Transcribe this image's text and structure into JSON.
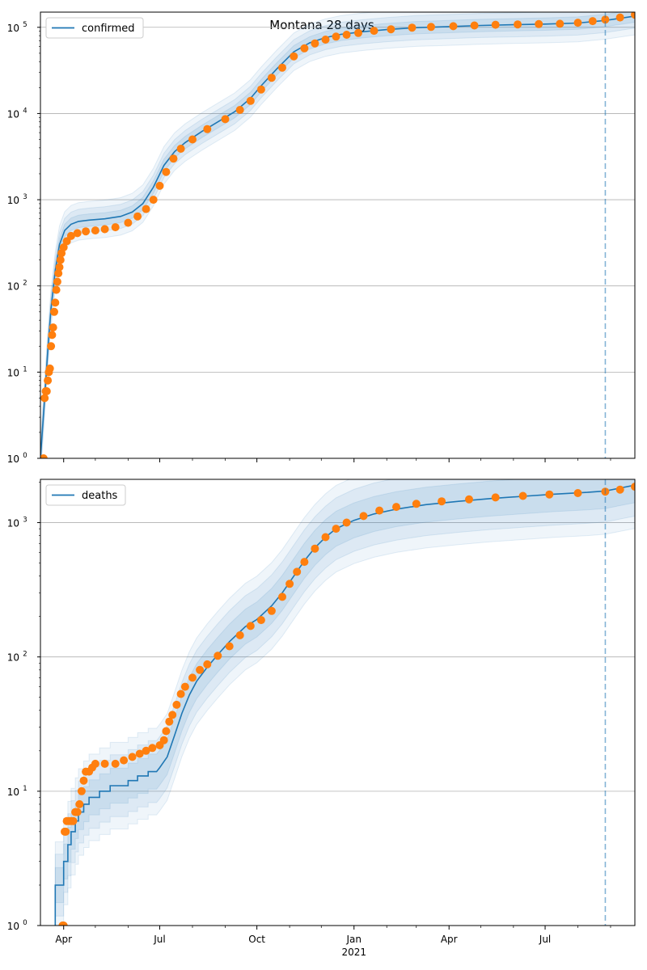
{
  "figure": {
    "title": "Montana 28 days"
  },
  "chart_data": [
    {
      "type": "line",
      "title": "Montana 28 days",
      "legend": [
        "confirmed"
      ],
      "legend_position": "top-left",
      "yscale": "log",
      "ylim": [
        1,
        150000
      ],
      "yticks": [
        1,
        10,
        100,
        1000,
        10000,
        100000
      ],
      "ytick_labels": [
        [
          "10",
          "0"
        ],
        [
          "10",
          "1"
        ],
        [
          "10",
          "2"
        ],
        [
          "10",
          "3"
        ],
        [
          "10",
          "4"
        ],
        [
          "10",
          "5"
        ]
      ],
      "xlim": [
        "2020-03-10",
        "2021-09-24"
      ],
      "grid": "y",
      "vline": "2021-08-27",
      "colors": {
        "model": "#1f77b4",
        "observed": "#ff7f0e",
        "band": "#1f77b4"
      },
      "series": [
        {
          "name": "confirmed",
          "kind": "model-line",
          "points": [
            [
              "2020-03-10",
              1
            ],
            [
              "2020-03-14",
              5
            ],
            [
              "2020-03-17",
              18
            ],
            [
              "2020-03-20",
              55
            ],
            [
              "2020-03-24",
              150
            ],
            [
              "2020-03-28",
              300
            ],
            [
              "2020-04-02",
              440
            ],
            [
              "2020-04-08",
              520
            ],
            [
              "2020-04-15",
              560
            ],
            [
              "2020-04-25",
              580
            ],
            [
              "2020-05-10",
              600
            ],
            [
              "2020-05-25",
              640
            ],
            [
              "2020-06-05",
              720
            ],
            [
              "2020-06-15",
              900
            ],
            [
              "2020-06-25",
              1400
            ],
            [
              "2020-07-05",
              2500
            ],
            [
              "2020-07-15",
              3600
            ],
            [
              "2020-07-25",
              4600
            ],
            [
              "2020-08-10",
              6200
            ],
            [
              "2020-08-25",
              8000
            ],
            [
              "2020-09-10",
              10500
            ],
            [
              "2020-09-25",
              15000
            ],
            [
              "2020-10-05",
              21000
            ],
            [
              "2020-10-20",
              33000
            ],
            [
              "2020-11-05",
              52000
            ],
            [
              "2020-11-20",
              66000
            ],
            [
              "2020-12-05",
              76000
            ],
            [
              "2020-12-20",
              83000
            ],
            [
              "2021-01-10",
              89000
            ],
            [
              "2021-02-01",
              94000
            ],
            [
              "2021-03-01",
              99000
            ],
            [
              "2021-04-01",
              102000
            ],
            [
              "2021-05-01",
              105000
            ],
            [
              "2021-06-01",
              107000
            ],
            [
              "2021-07-01",
              109000
            ],
            [
              "2021-08-01",
              112000
            ],
            [
              "2021-08-27",
              120000
            ],
            [
              "2021-09-24",
              135000
            ]
          ]
        },
        {
          "name": "observed",
          "kind": "markers",
          "points": [
            [
              "2020-03-13",
              1
            ],
            [
              "2020-03-14",
              5
            ],
            [
              "2020-03-15",
              6
            ],
            [
              "2020-03-16",
              6
            ],
            [
              "2020-03-17",
              8
            ],
            [
              "2020-03-18",
              10
            ],
            [
              "2020-03-19",
              11
            ],
            [
              "2020-03-20",
              20
            ],
            [
              "2020-03-21",
              27
            ],
            [
              "2020-03-22",
              33
            ],
            [
              "2020-03-23",
              50
            ],
            [
              "2020-03-24",
              64
            ],
            [
              "2020-03-25",
              90
            ],
            [
              "2020-03-26",
              112
            ],
            [
              "2020-03-27",
              140
            ],
            [
              "2020-03-28",
              165
            ],
            [
              "2020-03-29",
              200
            ],
            [
              "2020-03-30",
              240
            ],
            [
              "2020-04-01",
              280
            ],
            [
              "2020-04-04",
              330
            ],
            [
              "2020-04-08",
              380
            ],
            [
              "2020-04-14",
              410
            ],
            [
              "2020-04-22",
              430
            ],
            [
              "2020-05-01",
              440
            ],
            [
              "2020-05-10",
              455
            ],
            [
              "2020-05-20",
              480
            ],
            [
              "2020-06-01",
              540
            ],
            [
              "2020-06-10",
              640
            ],
            [
              "2020-06-18",
              780
            ],
            [
              "2020-06-25",
              1000
            ],
            [
              "2020-07-01",
              1450
            ],
            [
              "2020-07-07",
              2100
            ],
            [
              "2020-07-14",
              3000
            ],
            [
              "2020-07-21",
              3900
            ],
            [
              "2020-08-01",
              5000
            ],
            [
              "2020-08-15",
              6600
            ],
            [
              "2020-09-01",
              8600
            ],
            [
              "2020-09-15",
              11000
            ],
            [
              "2020-09-25",
              14000
            ],
            [
              "2020-10-05",
              19000
            ],
            [
              "2020-10-15",
              26000
            ],
            [
              "2020-10-25",
              34000
            ],
            [
              "2020-11-05",
              46000
            ],
            [
              "2020-11-15",
              57000
            ],
            [
              "2020-11-25",
              65000
            ],
            [
              "2020-12-05",
              72000
            ],
            [
              "2020-12-15",
              78000
            ],
            [
              "2020-12-25",
              82000
            ],
            [
              "2021-01-05",
              86000
            ],
            [
              "2021-01-20",
              91000
            ],
            [
              "2021-02-05",
              95000
            ],
            [
              "2021-02-25",
              99000
            ],
            [
              "2021-03-15",
              101000
            ],
            [
              "2021-04-05",
              103000
            ],
            [
              "2021-04-25",
              105000
            ],
            [
              "2021-05-15",
              107000
            ],
            [
              "2021-06-05",
              108000
            ],
            [
              "2021-06-25",
              109000
            ],
            [
              "2021-07-15",
              110000
            ],
            [
              "2021-08-01",
              113000
            ],
            [
              "2021-08-15",
              118000
            ],
            [
              "2021-08-27",
              123000
            ],
            [
              "2021-09-10",
              130000
            ],
            [
              "2021-09-24",
              140000
            ]
          ]
        }
      ]
    },
    {
      "type": "line",
      "legend": [
        "deaths"
      ],
      "legend_position": "top-left",
      "yscale": "log",
      "ylim": [
        1,
        2100
      ],
      "yticks": [
        1,
        10,
        100,
        1000
      ],
      "ytick_labels": [
        [
          "10",
          "0"
        ],
        [
          "10",
          "1"
        ],
        [
          "10",
          "2"
        ],
        [
          "10",
          "3"
        ]
      ],
      "xlim": [
        "2020-03-10",
        "2021-09-24"
      ],
      "xticks": [
        "2020-04-01",
        "2020-07-01",
        "2020-10-01",
        "2021-01-01",
        "2021-04-01",
        "2021-07-01"
      ],
      "xtick_labels": [
        "Apr",
        "Jul",
        "Oct",
        "Jan",
        "Apr",
        "Jul"
      ],
      "xlabel_year": "2021",
      "grid": "y",
      "vline": "2021-08-27",
      "series": [
        {
          "name": "deaths",
          "kind": "model-line",
          "points": [
            [
              "2020-03-24",
              1
            ],
            [
              "2020-03-24",
              2
            ],
            [
              "2020-04-01",
              2
            ],
            [
              "2020-04-01",
              3
            ],
            [
              "2020-04-05",
              3
            ],
            [
              "2020-04-05",
              4
            ],
            [
              "2020-04-08",
              4
            ],
            [
              "2020-04-08",
              5
            ],
            [
              "2020-04-12",
              5
            ],
            [
              "2020-04-12",
              6
            ],
            [
              "2020-04-15",
              6
            ],
            [
              "2020-04-15",
              7
            ],
            [
              "2020-04-20",
              7
            ],
            [
              "2020-04-20",
              8
            ],
            [
              "2020-04-25",
              8
            ],
            [
              "2020-04-25",
              9
            ],
            [
              "2020-05-05",
              9
            ],
            [
              "2020-05-05",
              10
            ],
            [
              "2020-05-15",
              10
            ],
            [
              "2020-05-15",
              11
            ],
            [
              "2020-06-01",
              11
            ],
            [
              "2020-06-01",
              12
            ],
            [
              "2020-06-10",
              12
            ],
            [
              "2020-06-10",
              13
            ],
            [
              "2020-06-20",
              13
            ],
            [
              "2020-06-20",
              14
            ],
            [
              "2020-06-28",
              14
            ],
            [
              "2020-07-01",
              15
            ],
            [
              "2020-07-08",
              18
            ],
            [
              "2020-07-15",
              26
            ],
            [
              "2020-07-22",
              38
            ],
            [
              "2020-07-29",
              52
            ],
            [
              "2020-08-05",
              66
            ],
            [
              "2020-08-15",
              84
            ],
            [
              "2020-08-25",
              104
            ],
            [
              "2020-09-05",
              130
            ],
            [
              "2020-09-20",
              168
            ],
            [
              "2020-10-01",
              190
            ],
            [
              "2020-10-15",
              240
            ],
            [
              "2020-10-25",
              300
            ],
            [
              "2020-11-05",
              400
            ],
            [
              "2020-11-15",
              520
            ],
            [
              "2020-11-25",
              650
            ],
            [
              "2020-12-05",
              780
            ],
            [
              "2020-12-15",
              900
            ],
            [
              "2021-01-01",
              1040
            ],
            [
              "2021-01-20",
              1160
            ],
            [
              "2021-02-10",
              1260
            ],
            [
              "2021-03-10",
              1360
            ],
            [
              "2021-04-10",
              1440
            ],
            [
              "2021-05-10",
              1510
            ],
            [
              "2021-06-10",
              1570
            ],
            [
              "2021-07-10",
              1630
            ],
            [
              "2021-08-10",
              1680
            ],
            [
              "2021-08-27",
              1720
            ],
            [
              "2021-09-24",
              1900
            ]
          ]
        },
        {
          "name": "observed",
          "kind": "markers",
          "points": [
            [
              "2020-03-31",
              1
            ],
            [
              "2020-04-01",
              1
            ],
            [
              "2020-04-02",
              5
            ],
            [
              "2020-04-03",
              5
            ],
            [
              "2020-04-04",
              6
            ],
            [
              "2020-04-06",
              6
            ],
            [
              "2020-04-08",
              6
            ],
            [
              "2020-04-10",
              6
            ],
            [
              "2020-04-12",
              7
            ],
            [
              "2020-04-14",
              7
            ],
            [
              "2020-04-16",
              8
            ],
            [
              "2020-04-18",
              10
            ],
            [
              "2020-04-20",
              12
            ],
            [
              "2020-04-22",
              14
            ],
            [
              "2020-04-25",
              14
            ],
            [
              "2020-04-28",
              15
            ],
            [
              "2020-05-01",
              16
            ],
            [
              "2020-05-10",
              16
            ],
            [
              "2020-05-20",
              16
            ],
            [
              "2020-05-28",
              17
            ],
            [
              "2020-06-05",
              18
            ],
            [
              "2020-06-12",
              19
            ],
            [
              "2020-06-18",
              20
            ],
            [
              "2020-06-24",
              21
            ],
            [
              "2020-07-01",
              22
            ],
            [
              "2020-07-05",
              24
            ],
            [
              "2020-07-07",
              28
            ],
            [
              "2020-07-10",
              33
            ],
            [
              "2020-07-13",
              37
            ],
            [
              "2020-07-17",
              44
            ],
            [
              "2020-07-21",
              53
            ],
            [
              "2020-07-25",
              60
            ],
            [
              "2020-08-01",
              70
            ],
            [
              "2020-08-08",
              80
            ],
            [
              "2020-08-15",
              88
            ],
            [
              "2020-08-25",
              102
            ],
            [
              "2020-09-05",
              120
            ],
            [
              "2020-09-15",
              145
            ],
            [
              "2020-09-25",
              170
            ],
            [
              "2020-10-05",
              188
            ],
            [
              "2020-10-15",
              220
            ],
            [
              "2020-10-25",
              280
            ],
            [
              "2020-11-01",
              350
            ],
            [
              "2020-11-08",
              430
            ],
            [
              "2020-11-15",
              510
            ],
            [
              "2020-11-25",
              640
            ],
            [
              "2020-12-05",
              780
            ],
            [
              "2020-12-15",
              900
            ],
            [
              "2020-12-25",
              1000
            ],
            [
              "2021-01-10",
              1120
            ],
            [
              "2021-01-25",
              1230
            ],
            [
              "2021-02-10",
              1310
            ],
            [
              "2021-03-01",
              1380
            ],
            [
              "2021-03-25",
              1440
            ],
            [
              "2021-04-20",
              1490
            ],
            [
              "2021-05-15",
              1540
            ],
            [
              "2021-06-10",
              1580
            ],
            [
              "2021-07-05",
              1620
            ],
            [
              "2021-08-01",
              1660
            ],
            [
              "2021-08-27",
              1700
            ],
            [
              "2021-09-10",
              1760
            ],
            [
              "2021-09-24",
              1850
            ]
          ]
        }
      ]
    }
  ]
}
